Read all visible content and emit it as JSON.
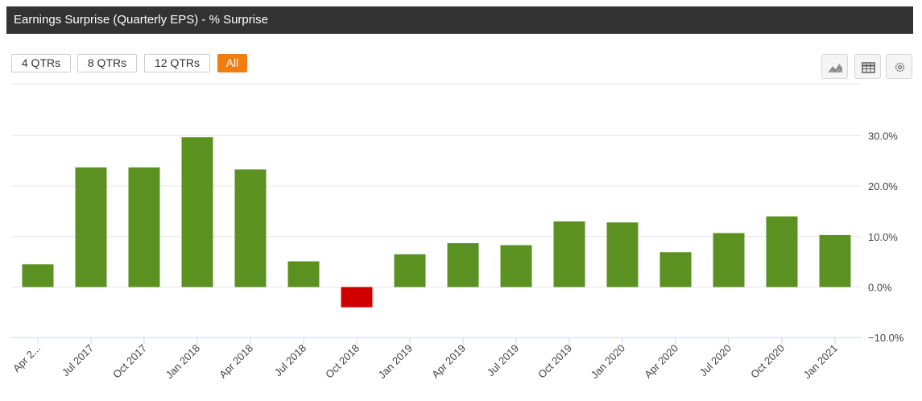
{
  "header": {
    "title": "Earnings Surprise (Quarterly EPS) - % Surprise"
  },
  "range_buttons": [
    {
      "label": "4 QTRs",
      "active": false
    },
    {
      "label": "8 QTRs",
      "active": false
    },
    {
      "label": "12 QTRs",
      "active": false
    },
    {
      "label": "All",
      "active": true
    }
  ],
  "toolbar": {
    "icons": [
      "area-chart-icon",
      "table-icon",
      "gear-icon"
    ]
  },
  "colors": {
    "positive": "#5b9121",
    "negative": "#d00000",
    "accent": "#f07d10",
    "title_bg": "#333333"
  },
  "chart_data": {
    "type": "bar",
    "title": "Earnings Surprise (Quarterly EPS) - % Surprise",
    "xlabel": "",
    "ylabel": "",
    "categories": [
      "Apr 2...",
      "Jul 2017",
      "Oct 2017",
      "Jan 2018",
      "Apr 2018",
      "Jul 2018",
      "Oct 2018",
      "Jan 2019",
      "Apr 2019",
      "Jul 2019",
      "Oct 2019",
      "Jan 2020",
      "Apr 2020",
      "Jul 2020",
      "Oct 2020",
      "Jan 2021"
    ],
    "values": [
      4.5,
      23.7,
      23.7,
      29.7,
      23.3,
      5.1,
      -4.0,
      6.5,
      8.7,
      8.3,
      13.0,
      12.8,
      6.9,
      10.7,
      14.0,
      10.3
    ],
    "ylim": [
      -10,
      40
    ],
    "yticks": [
      -10,
      0,
      10,
      20,
      30
    ],
    "ytick_labels": [
      "−10.0%",
      "0.0%",
      "10.0%",
      "20.0%",
      "30.0%"
    ],
    "grid": true,
    "y_axis_side": "right"
  }
}
